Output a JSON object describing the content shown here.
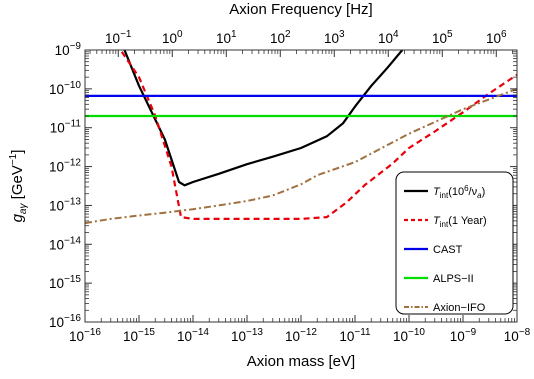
{
  "chart_data": {
    "type": "line",
    "title": "",
    "xlabel": "Axion mass [eV]",
    "x2label": "Axion Frequency [Hz]",
    "ylabel_main": "g",
    "ylabel_sub": "aγ",
    "ylabel_unit": " [GeV",
    "ylabel_unit_exp": "−1",
    "ylabel_unit_close": "]",
    "x_scale": "log",
    "y_scale": "log",
    "xlim": [
      1e-16,
      1e-08
    ],
    "ylim": [
      1e-16,
      1e-09
    ],
    "x2lim_hz": [
      0.0242,
      2420000
    ],
    "grid": false,
    "legend_position": "bottom-right",
    "x_ticks": [
      {
        "value": 1e-16,
        "base": "10",
        "exp": "−16"
      },
      {
        "value": 1e-15,
        "base": "10",
        "exp": "−15"
      },
      {
        "value": 1e-14,
        "base": "10",
        "exp": "−14"
      },
      {
        "value": 1e-13,
        "base": "10",
        "exp": "−13"
      },
      {
        "value": 1e-12,
        "base": "10",
        "exp": "−12"
      },
      {
        "value": 1e-11,
        "base": "10",
        "exp": "−11"
      },
      {
        "value": 1e-10,
        "base": "10",
        "exp": "−10"
      },
      {
        "value": 1e-09,
        "base": "10",
        "exp": "−9"
      },
      {
        "value": 1e-08,
        "base": "10",
        "exp": "−8"
      }
    ],
    "x2_ticks": [
      {
        "value": 0.1,
        "base": "10",
        "exp": "−1"
      },
      {
        "value": 1,
        "base": "10",
        "exp": "0"
      },
      {
        "value": 10,
        "base": "10",
        "exp": "1"
      },
      {
        "value": 100,
        "base": "10",
        "exp": "2"
      },
      {
        "value": 1000,
        "base": "10",
        "exp": "3"
      },
      {
        "value": 10000,
        "base": "10",
        "exp": "4"
      },
      {
        "value": 100000,
        "base": "10",
        "exp": "5"
      },
      {
        "value": 1000000,
        "base": "10",
        "exp": "6"
      }
    ],
    "y_ticks": [
      {
        "value": 1e-09,
        "base": "10",
        "exp": "−9"
      },
      {
        "value": 1e-10,
        "base": "10",
        "exp": "−10"
      },
      {
        "value": 1e-11,
        "base": "10",
        "exp": "−11"
      },
      {
        "value": 1e-12,
        "base": "10",
        "exp": "−12"
      },
      {
        "value": 1e-13,
        "base": "10",
        "exp": "−13"
      },
      {
        "value": 1e-14,
        "base": "10",
        "exp": "−14"
      },
      {
        "value": 1e-15,
        "base": "10",
        "exp": "−15"
      },
      {
        "value": 1e-16,
        "base": "10",
        "exp": "−16"
      }
    ],
    "series": [
      {
        "key": "tint_1e6",
        "legend_main": "T",
        "legend_sub": "int",
        "legend_rest": "(10",
        "legend_sup": "6",
        "legend_tail_a": "/ν",
        "legend_tail_sub": "a",
        "legend_tail_b": ")",
        "color": "#000000",
        "dash": "",
        "width": 2.2,
        "x": [
          5.4e-16,
          1e-15,
          3e-15,
          5.5e-15,
          7e-15,
          1e-14,
          3e-14,
          1e-13,
          3e-13,
          1e-12,
          3e-12,
          6e-12,
          1e-11,
          2e-11,
          4e-11,
          7.5e-11
        ],
        "y": [
          1e-09,
          1.2e-10,
          5e-12,
          4e-13,
          3.3e-13,
          4e-13,
          6.5e-13,
          1.15e-12,
          1.8e-12,
          3e-12,
          6e-12,
          1.3e-11,
          3.5e-11,
          1.2e-10,
          3.5e-10,
          1e-09
        ]
      },
      {
        "key": "tint_1year",
        "legend_main": "T",
        "legend_sub": "int",
        "legend_rest": "(1 Year)",
        "color": "#e8000b",
        "dash": "6,4",
        "width": 2.2,
        "x": [
          4.8e-16,
          1e-15,
          2e-15,
          4e-15,
          6e-15,
          1e-14,
          1e-13,
          1e-12,
          3e-12,
          7e-12,
          1.5e-11,
          5e-11,
          1e-10,
          3e-10,
          1e-09,
          3e-09,
          1e-08
        ],
        "y": [
          9e-10,
          2e-10,
          2e-11,
          1e-12,
          5e-14,
          4.5e-14,
          4.5e-14,
          4.5e-14,
          5e-14,
          1.2e-13,
          3.3e-13,
          1.2e-12,
          3e-12,
          8e-12,
          2.5e-11,
          7.5e-11,
          2.3e-10
        ]
      },
      {
        "key": "cast",
        "legend_main": "CAST",
        "color": "#0000ee",
        "dash": "",
        "width": 2.2,
        "x": [
          1e-16,
          1e-08
        ],
        "y": [
          6.6e-11,
          6.6e-11
        ]
      },
      {
        "key": "alps",
        "legend_main": "ALPS−II",
        "color": "#00dd00",
        "dash": "",
        "width": 2.2,
        "x": [
          1e-16,
          1e-08
        ],
        "y": [
          2e-11,
          2e-11
        ]
      },
      {
        "key": "ifo",
        "legend_main": "Axion−IFO",
        "color": "#a0703e",
        "dash": "7,3,2,3",
        "width": 2,
        "x": [
          1e-16,
          3e-16,
          1e-15,
          3e-15,
          1e-14,
          3e-14,
          1e-13,
          3e-13,
          1e-12,
          2e-12,
          1e-11,
          1e-10,
          1e-09,
          1e-08
        ],
        "y": [
          3.5e-14,
          4.5e-14,
          5.5e-14,
          6.5e-14,
          8e-14,
          1e-13,
          1.3e-13,
          1.8e-13,
          3.5e-13,
          6e-13,
          1.3e-12,
          7e-12,
          3e-11,
          1e-10
        ]
      }
    ]
  }
}
